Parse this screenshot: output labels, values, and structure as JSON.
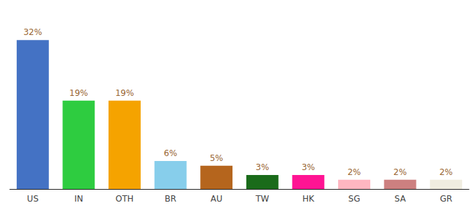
{
  "chart_data": {
    "type": "bar",
    "categories": [
      "US",
      "IN",
      "OTH",
      "BR",
      "AU",
      "TW",
      "HK",
      "SG",
      "SA",
      "GR"
    ],
    "values": [
      32,
      19,
      19,
      6,
      5,
      3,
      3,
      2,
      2,
      2
    ],
    "value_labels": [
      "32%",
      "19%",
      "19%",
      "6%",
      "5%",
      "3%",
      "3%",
      "2%",
      "2%",
      "2%"
    ],
    "colors": [
      "#4472c4",
      "#2ecc40",
      "#f5a300",
      "#87ceeb",
      "#b5651d",
      "#1a6b1a",
      "#ff1493",
      "#ffb6c1",
      "#cd8080",
      "#f0ede0"
    ],
    "ylim": [
      0,
      37
    ],
    "grid": false,
    "data_labels": true,
    "tick_labels": "x"
  }
}
